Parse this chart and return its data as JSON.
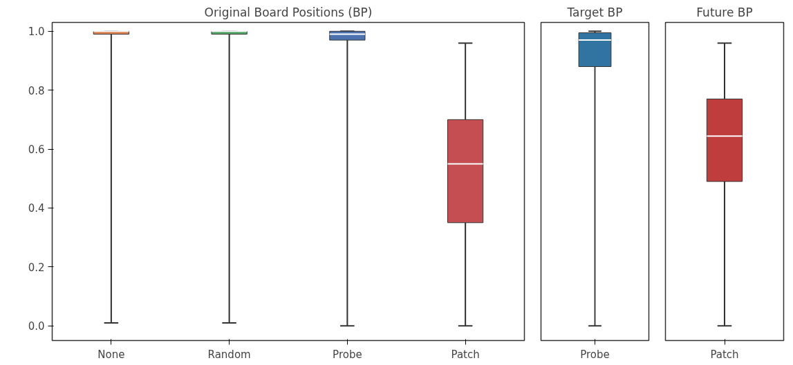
{
  "chart_data": [
    {
      "type": "box",
      "title": "Original Board Positions (BP)",
      "categories": [
        "None",
        "Random",
        "Probe",
        "Patch"
      ],
      "colors": [
        "#dd8452",
        "#55a868",
        "#4c72b0",
        "#c44e52"
      ],
      "boxes": [
        {
          "low": 0.01,
          "q1": 0.99,
          "median": 1.0,
          "q3": 1.0,
          "high": 1.0
        },
        {
          "low": 0.01,
          "q1": 0.99,
          "median": 1.0,
          "q3": 1.0,
          "high": 1.0
        },
        {
          "low": 0.0,
          "q1": 0.97,
          "median": 0.99,
          "q3": 1.0,
          "high": 1.0
        },
        {
          "low": 0.0,
          "q1": 0.35,
          "median": 0.55,
          "q3": 0.7,
          "high": 0.96
        }
      ],
      "ylim": [
        -0.05,
        1.03
      ],
      "yticks": [
        {
          "value": 0,
          "label": "0.0"
        },
        {
          "value": 0.2,
          "label": "0.2"
        },
        {
          "value": 0.4,
          "label": "0.4"
        },
        {
          "value": 0.6,
          "label": "0.6"
        },
        {
          "value": 0.8,
          "label": "0.8"
        },
        {
          "value": 1,
          "label": "1.0"
        }
      ],
      "grid": false
    },
    {
      "type": "box",
      "title": "Target BP",
      "categories": [
        "Probe"
      ],
      "colors": [
        "#3274a1"
      ],
      "boxes": [
        {
          "low": 0.0,
          "q1": 0.88,
          "median": 0.97,
          "q3": 0.995,
          "high": 1.0
        }
      ],
      "ylim": [
        -0.05,
        1.03
      ],
      "tick_labels": "x",
      "grid": false
    },
    {
      "type": "box",
      "title": "Future BP",
      "categories": [
        "Patch"
      ],
      "colors": [
        "#c03d3e"
      ],
      "boxes": [
        {
          "low": 0.0,
          "q1": 0.49,
          "median": 0.644,
          "q3": 0.77,
          "high": 0.96
        }
      ],
      "ylim": [
        -0.05,
        1.03
      ],
      "tick_labels": "x",
      "grid": false
    }
  ]
}
